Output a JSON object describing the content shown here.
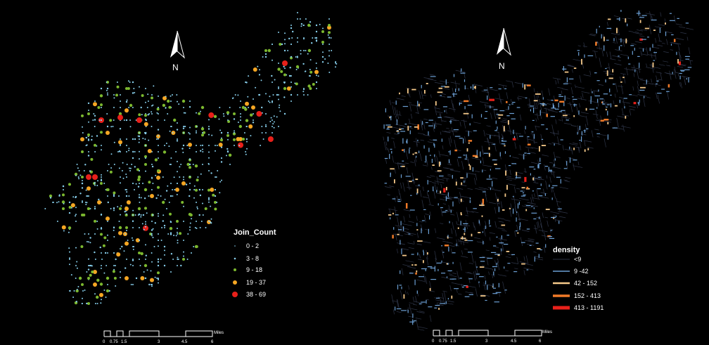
{
  "north_label": "N",
  "left_map": {
    "legend": {
      "title": "Join_Count",
      "classes": [
        {
          "label": "0 - 2",
          "color": "#87ceeb"
        },
        {
          "label": "3 - 8",
          "color": "#87ceeb"
        },
        {
          "label": "9 - 18",
          "color": "#7cb82f"
        },
        {
          "label": "19 - 37",
          "color": "#f5a623"
        },
        {
          "label": "38 - 69",
          "color": "#e8201a"
        }
      ]
    },
    "scale_bar": {
      "ticks": [
        "0",
        "0.75",
        "1.5",
        "3",
        "4.5",
        "6"
      ],
      "unit": "Miles"
    }
  },
  "right_map": {
    "legend": {
      "title": "density",
      "classes": [
        {
          "label": "<9",
          "color": "#2a3040"
        },
        {
          "label": "9 -42",
          "color": "#6b9fd4"
        },
        {
          "label": "42 - 152",
          "color": "#f5c98a"
        },
        {
          "label": "152 - 413",
          "color": "#f07a28"
        },
        {
          "label": "413 - 1191",
          "color": "#e8201a"
        }
      ]
    },
    "scale_bar": {
      "ticks": [
        "0",
        "0.75",
        "1.5",
        "3",
        "4.5",
        "6"
      ],
      "unit": "Miles"
    }
  }
}
